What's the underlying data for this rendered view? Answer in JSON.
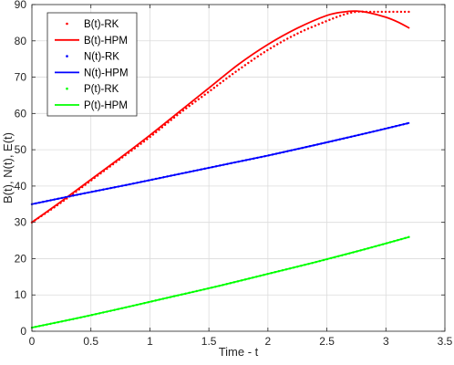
{
  "chart_data": {
    "type": "line",
    "xlabel": "Time - t",
    "ylabel": "B(t), N(t), E(t)",
    "xlim": [
      0,
      3.5
    ],
    "ylim": [
      0,
      90
    ],
    "xticks": [
      "0",
      "0.5",
      "1",
      "1.5",
      "2",
      "2.5",
      "3",
      "3.5"
    ],
    "yticks": [
      "0",
      "10",
      "20",
      "30",
      "40",
      "50",
      "60",
      "70",
      "80",
      "90"
    ],
    "grid": true,
    "legend_position": "top-left",
    "series": [
      {
        "name": "B(t)-RK",
        "style": "dotted",
        "color": "#ff0000",
        "x": [
          0,
          0.25,
          0.5,
          0.75,
          1.0,
          1.25,
          1.5,
          1.75,
          2.0,
          2.25,
          2.5,
          2.65,
          2.75,
          2.85,
          3.0,
          3.2
        ],
        "y": [
          30,
          35.5,
          41.5,
          47.5,
          53.5,
          60,
          66,
          72,
          77.5,
          82,
          85.5,
          87.3,
          88,
          88,
          88,
          88
        ]
      },
      {
        "name": "B(t)-HPM",
        "style": "solid",
        "color": "#ff0000",
        "x": [
          0,
          0.25,
          0.5,
          0.75,
          1.0,
          1.25,
          1.5,
          1.75,
          2.0,
          2.25,
          2.5,
          2.65,
          2.75,
          2.85,
          3.0,
          3.1,
          3.2
        ],
        "y": [
          30,
          35.8,
          41.8,
          47.8,
          54,
          60.5,
          67,
          73.5,
          79,
          83.5,
          87,
          88,
          88.2,
          87.8,
          86.5,
          85.2,
          83.5
        ]
      },
      {
        "name": "N(t)-RK",
        "style": "dotted",
        "color": "#0000ff",
        "x": [
          0,
          0.4,
          0.8,
          1.2,
          1.6,
          2.0,
          2.4,
          2.8,
          3.2
        ],
        "y": [
          35,
          37.7,
          40.3,
          43,
          45.7,
          48.4,
          51.3,
          54.3,
          57.4
        ]
      },
      {
        "name": "N(t)-HPM",
        "style": "solid",
        "color": "#0000ff",
        "x": [
          0,
          0.4,
          0.8,
          1.2,
          1.6,
          2.0,
          2.4,
          2.8,
          3.2
        ],
        "y": [
          35,
          37.7,
          40.3,
          43,
          45.7,
          48.4,
          51.3,
          54.3,
          57.4
        ]
      },
      {
        "name": "P(t)-RK",
        "style": "dotted",
        "color": "#00ff00",
        "x": [
          0,
          0.4,
          0.8,
          1.2,
          1.6,
          2.0,
          2.4,
          2.8,
          3.2
        ],
        "y": [
          1,
          3.7,
          6.6,
          9.6,
          12.6,
          15.8,
          19,
          22.4,
          26
        ]
      },
      {
        "name": "P(t)-HPM",
        "style": "solid",
        "color": "#00ff00",
        "x": [
          0,
          0.4,
          0.8,
          1.2,
          1.6,
          2.0,
          2.4,
          2.8,
          3.2
        ],
        "y": [
          1,
          3.7,
          6.6,
          9.6,
          12.6,
          15.8,
          19,
          22.4,
          26
        ]
      }
    ]
  }
}
